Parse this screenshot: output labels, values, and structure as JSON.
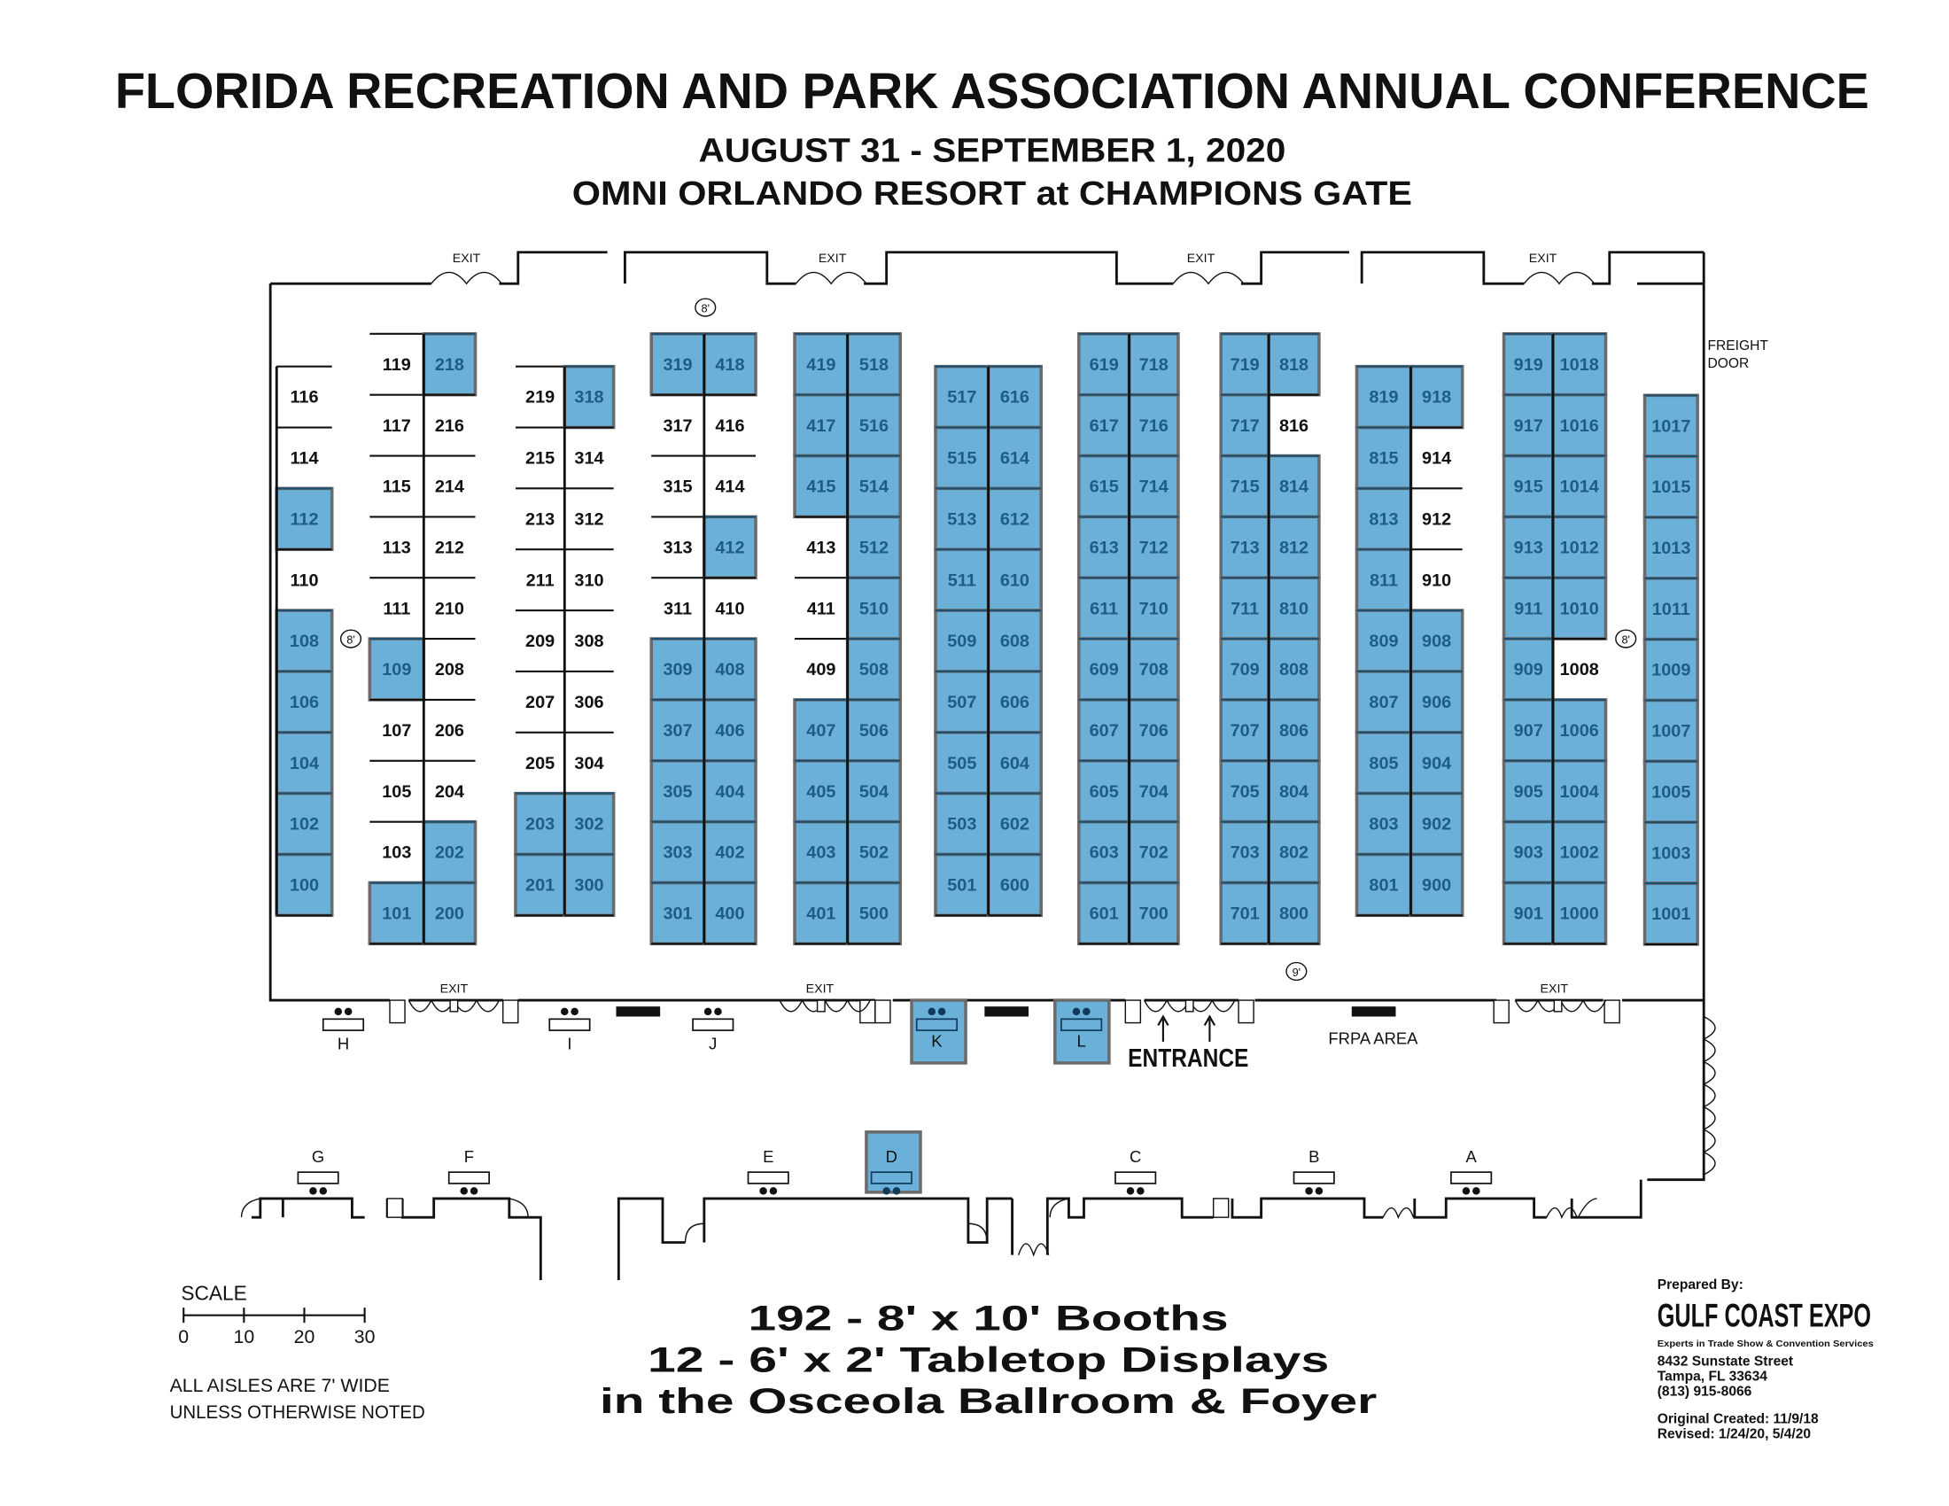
{
  "header": {
    "title": "FLORIDA RECREATION AND PARK ASSOCIATION ANNUAL CONFERENCE",
    "dates": "AUGUST 31 - SEPTEMBER 1, 2020",
    "venue": "OMNI ORLANDO RESORT at CHAMPIONS GATE"
  },
  "colors": {
    "booth_highlight": "#6bb0d9",
    "booth_highlight_text": "#1d5c86",
    "booth_border": "#6b6b6b"
  },
  "labels": {
    "exit": "EXIT",
    "freight_door_1": "FREIGHT",
    "freight_door_2": "DOOR",
    "aisle_8": "8'",
    "aisle_9": "9'",
    "entrance": "ENTRANCE",
    "frpa_area": "FRPA AREA"
  },
  "booths": {
    "columns": [
      [
        {
          "n": "116",
          "h": false
        },
        {
          "n": "114",
          "h": false
        },
        {
          "n": "112",
          "h": true
        },
        {
          "n": "110",
          "h": false
        },
        {
          "n": "108",
          "h": true
        },
        {
          "n": "106",
          "h": true
        },
        {
          "n": "104",
          "h": true
        },
        {
          "n": "102",
          "h": true
        },
        {
          "n": "100",
          "h": true
        }
      ],
      [
        {
          "n": "119",
          "h": false
        },
        {
          "n": "117",
          "h": false
        },
        {
          "n": "115",
          "h": false
        },
        {
          "n": "113",
          "h": false
        },
        {
          "n": "111",
          "h": false
        },
        {
          "n": "109",
          "h": true
        },
        {
          "n": "107",
          "h": false
        },
        {
          "n": "105",
          "h": false
        },
        {
          "n": "103",
          "h": false
        },
        {
          "n": "101",
          "h": true
        }
      ],
      [
        {
          "n": "218",
          "h": true
        },
        {
          "n": "216",
          "h": false
        },
        {
          "n": "214",
          "h": false
        },
        {
          "n": "212",
          "h": false
        },
        {
          "n": "210",
          "h": false
        },
        {
          "n": "208",
          "h": false
        },
        {
          "n": "206",
          "h": false
        },
        {
          "n": "204",
          "h": false
        },
        {
          "n": "202",
          "h": true
        },
        {
          "n": "200",
          "h": true
        }
      ],
      [
        {
          "n": "219",
          "h": false
        },
        {
          "n": "215",
          "h": false
        },
        {
          "n": "213",
          "h": false
        },
        {
          "n": "211",
          "h": false
        },
        {
          "n": "209",
          "h": false
        },
        {
          "n": "207",
          "h": false
        },
        {
          "n": "205",
          "h": false
        },
        {
          "n": "203",
          "h": true
        },
        {
          "n": "201",
          "h": true
        }
      ],
      [
        {
          "n": "318",
          "h": true
        },
        {
          "n": "314",
          "h": false
        },
        {
          "n": "312",
          "h": false
        },
        {
          "n": "310",
          "h": false
        },
        {
          "n": "308",
          "h": false
        },
        {
          "n": "306",
          "h": false
        },
        {
          "n": "304",
          "h": false
        },
        {
          "n": "302",
          "h": true
        },
        {
          "n": "300",
          "h": true
        }
      ],
      [
        {
          "n": "319",
          "h": true
        },
        {
          "n": "317",
          "h": false
        },
        {
          "n": "315",
          "h": false
        },
        {
          "n": "313",
          "h": false
        },
        {
          "n": "311",
          "h": false
        },
        {
          "n": "309",
          "h": true
        },
        {
          "n": "307",
          "h": true
        },
        {
          "n": "305",
          "h": true
        },
        {
          "n": "303",
          "h": true
        },
        {
          "n": "301",
          "h": true
        }
      ],
      [
        {
          "n": "418",
          "h": true
        },
        {
          "n": "416",
          "h": false
        },
        {
          "n": "414",
          "h": false
        },
        {
          "n": "412",
          "h": true
        },
        {
          "n": "410",
          "h": false
        },
        {
          "n": "408",
          "h": true
        },
        {
          "n": "406",
          "h": true
        },
        {
          "n": "404",
          "h": true
        },
        {
          "n": "402",
          "h": true
        },
        {
          "n": "400",
          "h": true
        }
      ],
      [
        {
          "n": "419",
          "h": true
        },
        {
          "n": "417",
          "h": true
        },
        {
          "n": "415",
          "h": true
        },
        {
          "n": "413",
          "h": false
        },
        {
          "n": "411",
          "h": false
        },
        {
          "n": "409",
          "h": false
        },
        {
          "n": "407",
          "h": true
        },
        {
          "n": "405",
          "h": true
        },
        {
          "n": "403",
          "h": true
        },
        {
          "n": "401",
          "h": true
        }
      ],
      [
        {
          "n": "518",
          "h": true
        },
        {
          "n": "516",
          "h": true
        },
        {
          "n": "514",
          "h": true
        },
        {
          "n": "512",
          "h": true
        },
        {
          "n": "510",
          "h": true
        },
        {
          "n": "508",
          "h": true
        },
        {
          "n": "506",
          "h": true
        },
        {
          "n": "504",
          "h": true
        },
        {
          "n": "502",
          "h": true
        },
        {
          "n": "500",
          "h": true
        }
      ],
      [
        {
          "n": "517",
          "h": true
        },
        {
          "n": "515",
          "h": true
        },
        {
          "n": "513",
          "h": true
        },
        {
          "n": "511",
          "h": true
        },
        {
          "n": "509",
          "h": true
        },
        {
          "n": "507",
          "h": true
        },
        {
          "n": "505",
          "h": true
        },
        {
          "n": "503",
          "h": true
        },
        {
          "n": "501",
          "h": true
        }
      ],
      [
        {
          "n": "616",
          "h": true
        },
        {
          "n": "614",
          "h": true
        },
        {
          "n": "612",
          "h": true
        },
        {
          "n": "610",
          "h": true
        },
        {
          "n": "608",
          "h": true
        },
        {
          "n": "606",
          "h": true
        },
        {
          "n": "604",
          "h": true
        },
        {
          "n": "602",
          "h": true
        },
        {
          "n": "600",
          "h": true
        }
      ],
      [
        {
          "n": "619",
          "h": true
        },
        {
          "n": "617",
          "h": true
        },
        {
          "n": "615",
          "h": true
        },
        {
          "n": "613",
          "h": true
        },
        {
          "n": "611",
          "h": true
        },
        {
          "n": "609",
          "h": true
        },
        {
          "n": "607",
          "h": true
        },
        {
          "n": "605",
          "h": true
        },
        {
          "n": "603",
          "h": true
        },
        {
          "n": "601",
          "h": true
        }
      ],
      [
        {
          "n": "718",
          "h": true
        },
        {
          "n": "716",
          "h": true
        },
        {
          "n": "714",
          "h": true
        },
        {
          "n": "712",
          "h": true
        },
        {
          "n": "710",
          "h": true
        },
        {
          "n": "708",
          "h": true
        },
        {
          "n": "706",
          "h": true
        },
        {
          "n": "704",
          "h": true
        },
        {
          "n": "702",
          "h": true
        },
        {
          "n": "700",
          "h": true
        }
      ],
      [
        {
          "n": "719",
          "h": true
        },
        {
          "n": "717",
          "h": true
        },
        {
          "n": "715",
          "h": true
        },
        {
          "n": "713",
          "h": true
        },
        {
          "n": "711",
          "h": true
        },
        {
          "n": "709",
          "h": true
        },
        {
          "n": "707",
          "h": true
        },
        {
          "n": "705",
          "h": true
        },
        {
          "n": "703",
          "h": true
        },
        {
          "n": "701",
          "h": true
        }
      ],
      [
        {
          "n": "818",
          "h": true
        },
        {
          "n": "816",
          "h": false
        },
        {
          "n": "814",
          "h": true
        },
        {
          "n": "812",
          "h": true
        },
        {
          "n": "810",
          "h": true
        },
        {
          "n": "808",
          "h": true
        },
        {
          "n": "806",
          "h": true
        },
        {
          "n": "804",
          "h": true
        },
        {
          "n": "802",
          "h": true
        },
        {
          "n": "800",
          "h": true
        }
      ],
      [
        {
          "n": "819",
          "h": true
        },
        {
          "n": "815",
          "h": true
        },
        {
          "n": "813",
          "h": true
        },
        {
          "n": "811",
          "h": true
        },
        {
          "n": "809",
          "h": true
        },
        {
          "n": "807",
          "h": true
        },
        {
          "n": "805",
          "h": true
        },
        {
          "n": "803",
          "h": true
        },
        {
          "n": "801",
          "h": true
        }
      ],
      [
        {
          "n": "918",
          "h": true
        },
        {
          "n": "914",
          "h": false
        },
        {
          "n": "912",
          "h": false
        },
        {
          "n": "910",
          "h": false
        },
        {
          "n": "908",
          "h": true
        },
        {
          "n": "906",
          "h": true
        },
        {
          "n": "904",
          "h": true
        },
        {
          "n": "902",
          "h": true
        },
        {
          "n": "900",
          "h": true
        }
      ],
      [
        {
          "n": "919",
          "h": true
        },
        {
          "n": "917",
          "h": true
        },
        {
          "n": "915",
          "h": true
        },
        {
          "n": "913",
          "h": true
        },
        {
          "n": "911",
          "h": true
        },
        {
          "n": "909",
          "h": true
        },
        {
          "n": "907",
          "h": true
        },
        {
          "n": "905",
          "h": true
        },
        {
          "n": "903",
          "h": true
        },
        {
          "n": "901",
          "h": true
        }
      ],
      [
        {
          "n": "1018",
          "h": true
        },
        {
          "n": "1016",
          "h": true
        },
        {
          "n": "1014",
          "h": true
        },
        {
          "n": "1012",
          "h": true
        },
        {
          "n": "1010",
          "h": true
        },
        {
          "n": "1008",
          "h": false
        },
        {
          "n": "1006",
          "h": true
        },
        {
          "n": "1004",
          "h": true
        },
        {
          "n": "1002",
          "h": true
        },
        {
          "n": "1000",
          "h": true
        }
      ],
      [
        {
          "n": "1017",
          "h": true
        },
        {
          "n": "1015",
          "h": true
        },
        {
          "n": "1013",
          "h": true
        },
        {
          "n": "1011",
          "h": true
        },
        {
          "n": "1009",
          "h": true
        },
        {
          "n": "1007",
          "h": true
        },
        {
          "n": "1005",
          "h": true
        },
        {
          "n": "1003",
          "h": true
        },
        {
          "n": "1001",
          "h": true
        }
      ]
    ]
  },
  "tabletops": [
    {
      "letter": "H",
      "h": false
    },
    {
      "letter": "I",
      "h": false
    },
    {
      "letter": "J",
      "h": false
    },
    {
      "letter": "K",
      "h": true
    },
    {
      "letter": "L",
      "h": true
    },
    {
      "letter": "G",
      "h": false
    },
    {
      "letter": "F",
      "h": false
    },
    {
      "letter": "E",
      "h": false
    },
    {
      "letter": "D",
      "h": true
    },
    {
      "letter": "C",
      "h": false
    },
    {
      "letter": "B",
      "h": false
    },
    {
      "letter": "A",
      "h": false
    }
  ],
  "scale": {
    "label": "SCALE",
    "ticks": [
      "0",
      "10",
      "20",
      "30"
    ]
  },
  "notes": {
    "line1": "ALL AISLES ARE 7' WIDE",
    "line2": "UNLESS OTHERWISE NOTED"
  },
  "summary": {
    "line1": "192 - 8' x 10' Booths",
    "line2": "12 - 6' x 2' Tabletop Displays",
    "line3": "in the Osceola Ballroom & Foyer"
  },
  "prepared_by": {
    "label": "Prepared By:",
    "company": "GULF COAST EXPO",
    "tagline": "Experts in Trade Show & Convention Services",
    "street": "8432 Sunstate Street",
    "city": "Tampa, FL 33634",
    "phone": "(813) 915-8066",
    "created": "Original Created: 11/9/18",
    "revised": "Revised: 1/24/20, 5/4/20"
  }
}
